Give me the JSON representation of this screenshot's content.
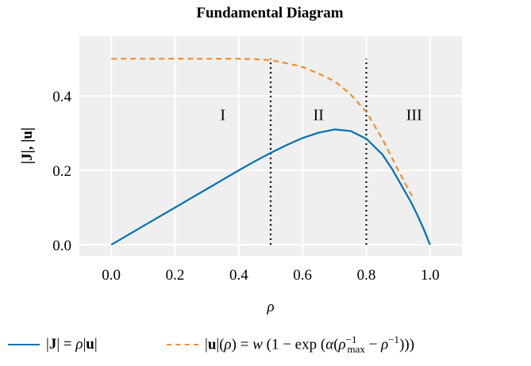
{
  "chart_data": {
    "type": "line",
    "title": "Fundamental Diagram",
    "xlabel": "ρ",
    "ylabel": "|J|, |u|",
    "xlim": [
      -0.1,
      1.1
    ],
    "ylim": [
      -0.03,
      0.56
    ],
    "x_ticks": [
      "0.0",
      "0.2",
      "0.4",
      "0.6",
      "0.8",
      "1.0"
    ],
    "x_tick_values": [
      0.0,
      0.2,
      0.4,
      0.6,
      0.8,
      1.0
    ],
    "y_ticks": [
      "0.0",
      "0.2",
      "0.4"
    ],
    "y_tick_values": [
      0.0,
      0.2,
      0.4
    ],
    "grid": true,
    "legend_position": "bottom",
    "series": [
      {
        "key": "J",
        "color": "#0072b2",
        "style": "solid",
        "x": [
          0.0,
          0.05,
          0.1,
          0.15,
          0.2,
          0.25,
          0.3,
          0.35,
          0.4,
          0.45,
          0.5,
          0.55,
          0.6,
          0.65,
          0.7,
          0.75,
          0.8,
          0.85,
          0.88,
          0.91,
          0.94,
          0.96,
          0.98,
          1.0
        ],
        "y": [
          0.0,
          0.025,
          0.05,
          0.075,
          0.1,
          0.125,
          0.15,
          0.175,
          0.2,
          0.224,
          0.247,
          0.268,
          0.287,
          0.301,
          0.31,
          0.306,
          0.285,
          0.243,
          0.205,
          0.16,
          0.115,
          0.08,
          0.042,
          0.0
        ]
      },
      {
        "key": "u",
        "color": "#f28e2b",
        "style": "dashed",
        "x": [
          0.0,
          0.1,
          0.2,
          0.3,
          0.4,
          0.45,
          0.5,
          0.55,
          0.6,
          0.65,
          0.7,
          0.75,
          0.8,
          0.85,
          0.9,
          0.95
        ],
        "y": [
          0.5,
          0.5,
          0.5,
          0.5,
          0.5,
          0.499,
          0.496,
          0.488,
          0.478,
          0.46,
          0.44,
          0.405,
          0.357,
          0.285,
          0.2,
          0.12
        ]
      }
    ],
    "vlines": [
      0.5,
      0.8
    ],
    "regions": [
      {
        "label": "I",
        "x": 0.35
      },
      {
        "label": "II",
        "x": 0.65
      },
      {
        "label": "III",
        "x": 0.95
      }
    ],
    "region_label_y": 0.35
  }
}
